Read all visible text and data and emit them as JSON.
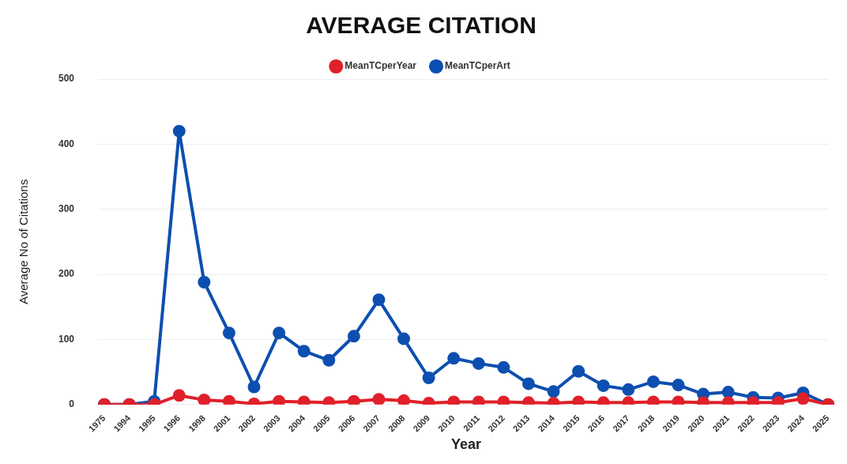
{
  "chart_data": {
    "type": "line",
    "title": "AVERAGE CITATION",
    "xlabel": "Year",
    "ylabel": "Average No of Citations",
    "categories": [
      "1975",
      "1994",
      "1995",
      "1996",
      "1998",
      "2001",
      "2002",
      "2003",
      "2004",
      "2005",
      "2006",
      "2007",
      "2008",
      "2009",
      "2010",
      "2011",
      "2012",
      "2013",
      "2014",
      "2015",
      "2016",
      "2017",
      "2018",
      "2019",
      "2020",
      "2021",
      "2022",
      "2023",
      "2024",
      "2025"
    ],
    "series": [
      {
        "name": "MeanTCperArt",
        "color": "#0d4fb0",
        "values": [
          0,
          0,
          5,
          420,
          188,
          110,
          27,
          110,
          82,
          68,
          105,
          161,
          101,
          41,
          71,
          63,
          57,
          32,
          20,
          51,
          29,
          23,
          35,
          30,
          16,
          19,
          11,
          10,
          18,
          0
        ]
      },
      {
        "name": "MeanTCperYear",
        "color": "#e0202a",
        "values": [
          0,
          0,
          0,
          14,
          7,
          5,
          1,
          5,
          4,
          3,
          5,
          8,
          6,
          2,
          4,
          4,
          4,
          3,
          2,
          4,
          3,
          3,
          4,
          4,
          3,
          3,
          3,
          3,
          9,
          0
        ]
      }
    ],
    "ylim": [
      0,
      500
    ],
    "yticks": [
      0,
      100,
      200,
      300,
      400,
      500
    ],
    "grid": "y",
    "legend": "top",
    "marker": "circle",
    "line_style": "solid"
  }
}
